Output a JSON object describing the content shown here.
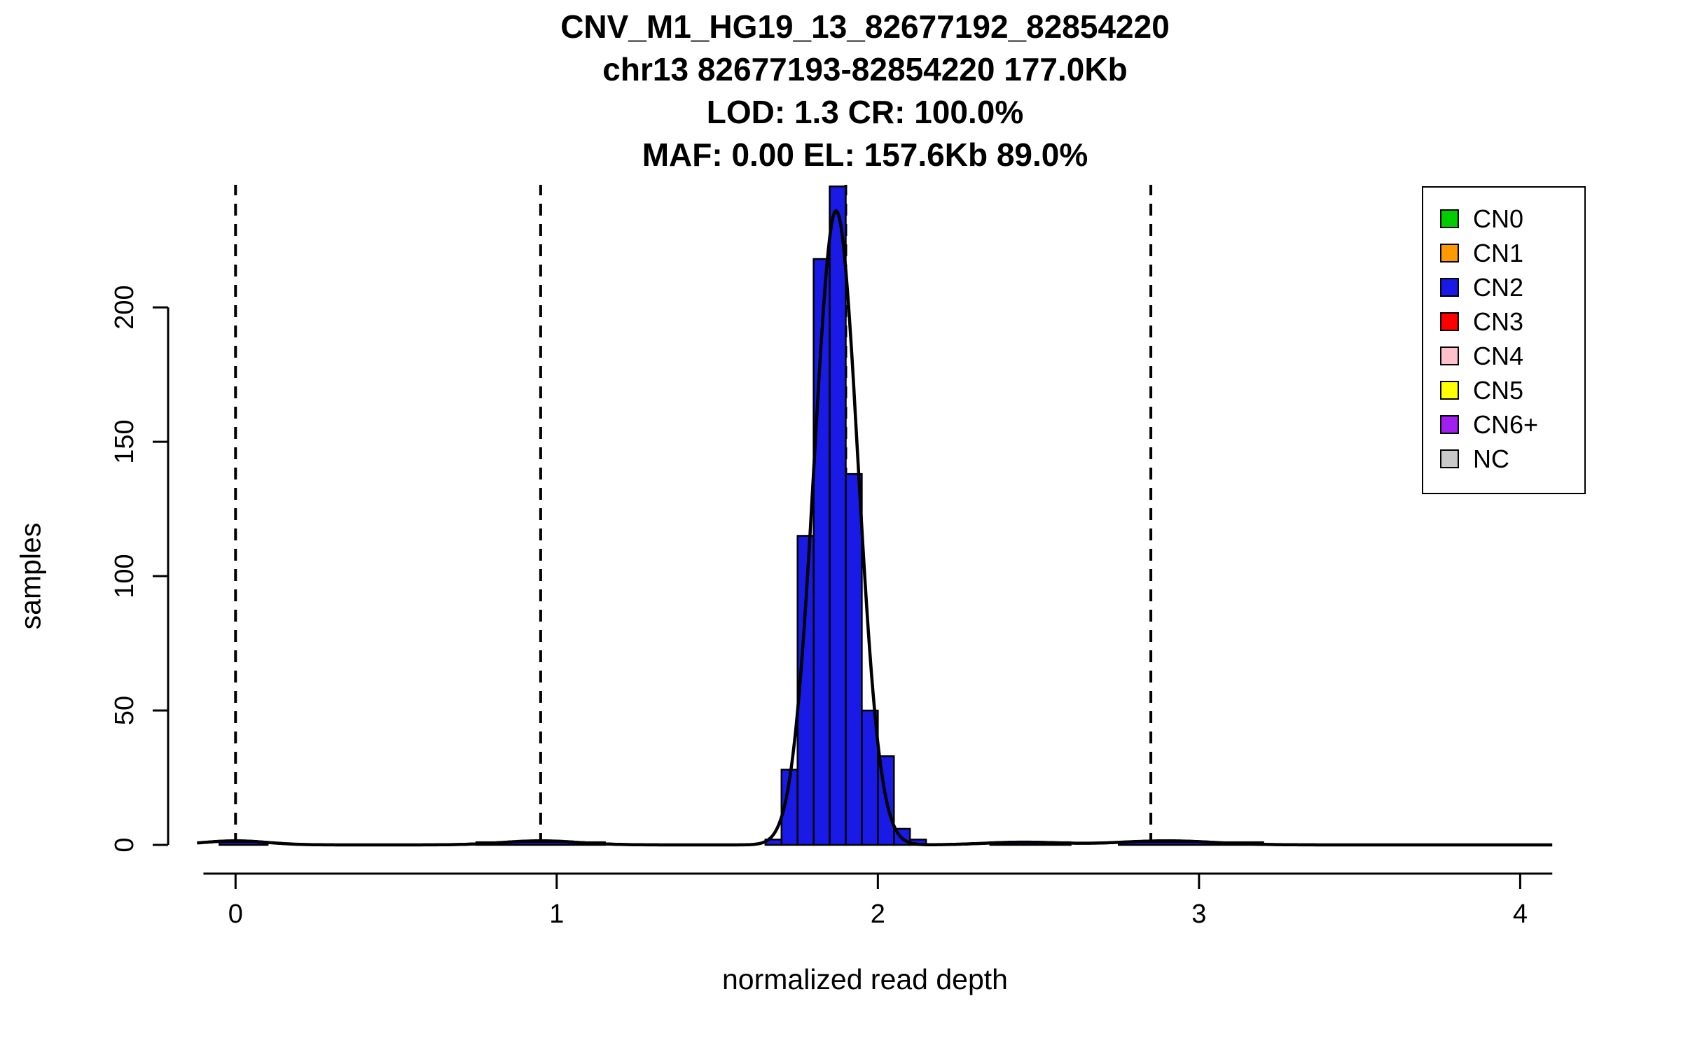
{
  "chart_data": {
    "type": "bar",
    "subtype": "histogram-with-density",
    "title": "CNV_M1_HG19_13_82677192_82854220 / chr13 82677193-82854220 177.0Kb / LOD: 1.3 CR: 100.0% / MAF: 0.00 EL: 157.6Kb 89.0%",
    "title_lines": [
      "CNV_M1_HG19_13_82677192_82854220",
      "chr13 82677193-82854220 177.0Kb",
      "LOD: 1.3 CR: 100.0%",
      "MAF: 0.00 EL: 157.6Kb 89.0%"
    ],
    "xlabel": "normalized read depth",
    "ylabel": "samples",
    "xlim": [
      -0.21,
      4.13
    ],
    "ylim": [
      0,
      245.6
    ],
    "x_ticks": [
      0,
      1,
      2,
      3,
      4
    ],
    "y_ticks": [
      0,
      50,
      100,
      150,
      200
    ],
    "grid": false,
    "bar_color": "#1a1ae6",
    "bar_edge_color": "#000000",
    "dashed_lines_x": [
      0.0,
      0.95,
      1.9,
      2.85
    ],
    "bars": [
      {
        "x0": -0.05,
        "x1": 0.1,
        "n": 1
      },
      {
        "x0": 0.75,
        "x1": 1.15,
        "n": 1
      },
      {
        "x0": 1.65,
        "x1": 1.7,
        "n": 2
      },
      {
        "x0": 1.7,
        "x1": 1.75,
        "n": 28
      },
      {
        "x0": 1.75,
        "x1": 1.8,
        "n": 115
      },
      {
        "x0": 1.8,
        "x1": 1.85,
        "n": 218
      },
      {
        "x0": 1.85,
        "x1": 1.9,
        "n": 245
      },
      {
        "x0": 1.9,
        "x1": 1.95,
        "n": 138
      },
      {
        "x0": 1.95,
        "x1": 2.0,
        "n": 50
      },
      {
        "x0": 2.0,
        "x1": 2.05,
        "n": 33
      },
      {
        "x0": 2.05,
        "x1": 2.1,
        "n": 6
      },
      {
        "x0": 2.1,
        "x1": 2.15,
        "n": 2
      },
      {
        "x0": 2.35,
        "x1": 2.6,
        "n": 1
      },
      {
        "x0": 2.75,
        "x1": 3.2,
        "n": 1
      }
    ],
    "density": {
      "color": "#000000",
      "range": [
        -0.12,
        4.1
      ],
      "components": [
        {
          "mean": 1.87,
          "sd": 0.068,
          "amp": 236
        },
        {
          "mean": 0.0,
          "sd": 0.1,
          "amp": 1.5
        },
        {
          "mean": 0.95,
          "sd": 0.12,
          "amp": 1.5
        },
        {
          "mean": 2.45,
          "sd": 0.12,
          "amp": 1.0
        },
        {
          "mean": 2.9,
          "sd": 0.15,
          "amp": 1.5
        }
      ]
    },
    "legend": {
      "position": "top-right",
      "entries": [
        {
          "label": "CN0",
          "color": "#00CC00"
        },
        {
          "label": "CN1",
          "color": "#FF9900"
        },
        {
          "label": "CN2",
          "color": "#1a1ae6"
        },
        {
          "label": "CN3",
          "color": "#FF0000"
        },
        {
          "label": "CN4",
          "color": "#FFC0CB"
        },
        {
          "label": "CN5",
          "color": "#FFFF00"
        },
        {
          "label": "CN6+",
          "color": "#A020F0"
        },
        {
          "label": "NC",
          "color": "#C9C9C9"
        }
      ]
    }
  }
}
